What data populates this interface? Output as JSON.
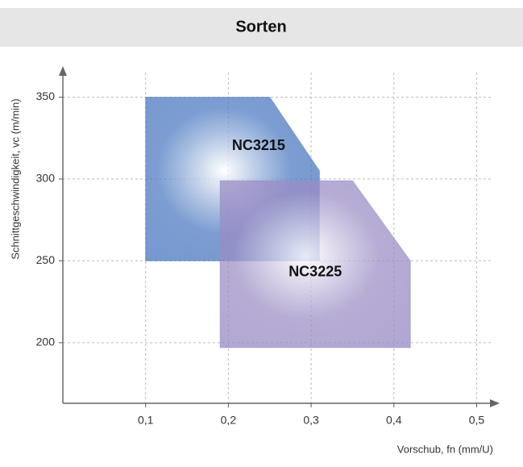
{
  "chart_data": {
    "type": "region",
    "title": "Sorten",
    "x_label": "Vorschub, fn (mm/U)",
    "y_label": "Schnittgeschwindigkeit, vc (m/min)",
    "xlim": [
      0,
      0.52
    ],
    "ylim": [
      163,
      365
    ],
    "xticks": [
      {
        "value": 0.1,
        "label": "0,1"
      },
      {
        "value": 0.2,
        "label": "0,2"
      },
      {
        "value": 0.3,
        "label": "0,3"
      },
      {
        "value": 0.4,
        "label": "0,4"
      },
      {
        "value": 0.5,
        "label": "0,5"
      }
    ],
    "yticks": [
      200,
      250,
      300,
      350
    ],
    "grid": true,
    "series": [
      {
        "name": "NC3215",
        "color": "#4a78c0",
        "x": [
          0.1,
          0.25,
          0.31,
          0.31,
          0.1
        ],
        "values": [
          350,
          350,
          305,
          250,
          250
        ]
      },
      {
        "name": "NC3225",
        "color": "#9a8cc4",
        "x": [
          0.19,
          0.35,
          0.42,
          0.42,
          0.19
        ],
        "values": [
          299,
          299,
          250,
          197,
          197
        ]
      }
    ]
  }
}
